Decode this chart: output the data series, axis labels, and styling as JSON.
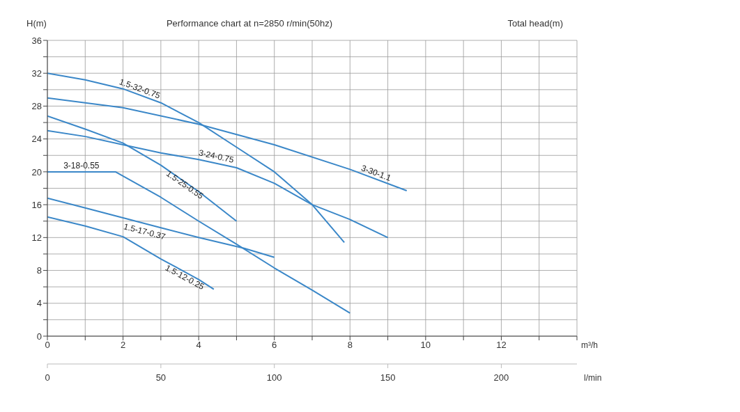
{
  "chart_data": {
    "type": "line",
    "title": "Performance chart at n=2850 r/min(50hz)",
    "ylabel": "H(m)",
    "xlabel": "m³/h",
    "x2label": "l/min",
    "annotations": [
      "Total head(m)"
    ],
    "xlim": [
      0,
      14
    ],
    "xticks": [
      0,
      {
        "value": 1,
        "label": null
      },
      2,
      {
        "value": 3,
        "label": null
      },
      4,
      {
        "value": 5,
        "label": null
      },
      6,
      {
        "value": 7,
        "label": null
      },
      8,
      {
        "value": 9,
        "label": null
      },
      10,
      {
        "value": 11,
        "label": null
      },
      12,
      {
        "value": 13,
        "label": null
      },
      {
        "value": 14,
        "label": null
      }
    ],
    "x2lim": [
      0,
      233.33
    ],
    "x2ticks": [
      0,
      50,
      100,
      150,
      200
    ],
    "ylim": [
      0,
      36
    ],
    "yticks": [
      0,
      {
        "value": 2,
        "label": null
      },
      4,
      {
        "value": 6,
        "label": null
      },
      8,
      {
        "value": 10,
        "label": null
      },
      12,
      {
        "value": 14,
        "label": null
      },
      16,
      {
        "value": 18,
        "label": null
      },
      20,
      {
        "value": 22,
        "label": null
      },
      24,
      {
        "value": 26,
        "label": null
      },
      28,
      {
        "value": 30,
        "label": null
      },
      32,
      {
        "value": 34,
        "label": null
      },
      36
    ],
    "grid": true,
    "marker": "none",
    "line_style": "solid",
    "series": [
      {
        "name": "1.5-32-0.75",
        "color": "#3a87c8",
        "x": [
          0,
          1,
          2,
          3,
          4,
          5,
          6,
          7,
          7.85
        ],
        "values": [
          32,
          31.2,
          30.1,
          28.4,
          26,
          23,
          20,
          16,
          11.4
        ]
      },
      {
        "name": "3-30-1.1",
        "color": "#3a87c8",
        "x": [
          0,
          2,
          4,
          6,
          8,
          9.5
        ],
        "values": [
          29,
          27.8,
          25.8,
          23.3,
          20.3,
          17.7
        ]
      },
      {
        "name": "3-24-0.75",
        "color": "#3a87c8",
        "x": [
          0,
          1,
          2,
          3,
          4,
          5,
          6,
          7,
          8,
          9
        ],
        "values": [
          25,
          24.3,
          23.3,
          22.3,
          21.5,
          20.5,
          18.6,
          16,
          14.2,
          12
        ]
      },
      {
        "name": "1.5-25-0.55",
        "color": "#3a87c8",
        "x": [
          0,
          1,
          2,
          3,
          4,
          5
        ],
        "values": [
          26.8,
          25.2,
          23.5,
          20.8,
          17.6,
          14
        ]
      },
      {
        "name": "3-18-0.55",
        "color": "#3a87c8",
        "x": [
          0,
          1.8,
          3,
          4,
          5,
          6,
          7,
          8
        ],
        "values": [
          20,
          20,
          16.9,
          14,
          11.2,
          8.3,
          5.6,
          2.8
        ]
      },
      {
        "name": "1.5-17-0.37",
        "color": "#3a87c8",
        "x": [
          0,
          1,
          2,
          3,
          4,
          5.2,
          6
        ],
        "values": [
          16.8,
          15.6,
          14.4,
          13.2,
          12,
          10.7,
          9.6
        ]
      },
      {
        "name": "1.5-12-0.25",
        "color": "#3a87c8",
        "x": [
          0,
          1,
          2,
          3,
          4,
          4.4
        ],
        "values": [
          14.5,
          13.4,
          12.1,
          9.4,
          6.9,
          5.7
        ]
      }
    ]
  }
}
